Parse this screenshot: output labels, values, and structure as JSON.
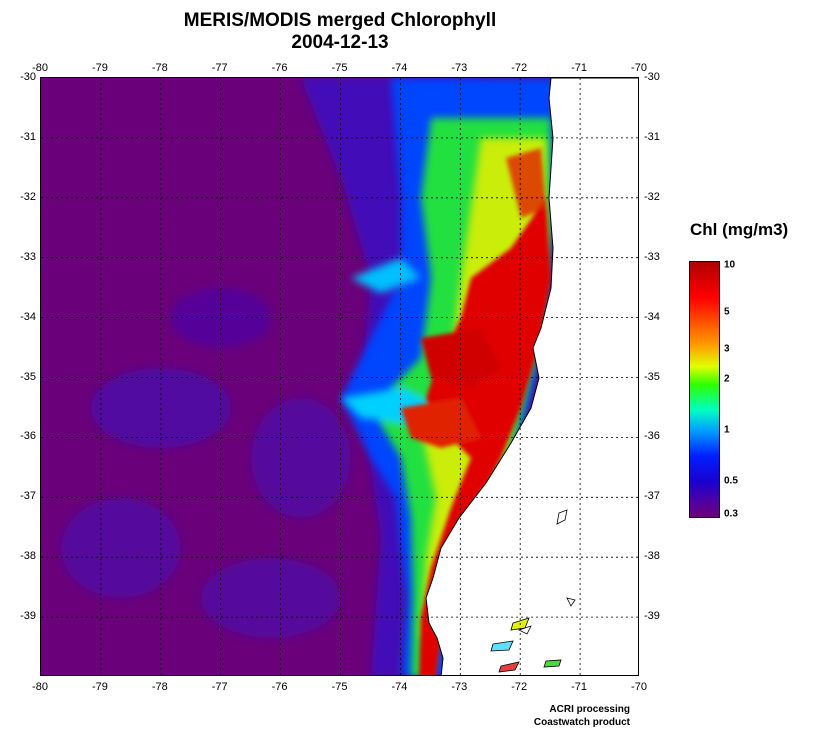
{
  "map": {
    "title": "MERIS/MODIS merged Chlorophyll",
    "date": "2004-12-13",
    "lon_ticks": [
      "-80",
      "-79",
      "-78",
      "-77",
      "-76",
      "-75",
      "-74",
      "-73",
      "-72",
      "-71",
      "-70"
    ],
    "lat_ticks": [
      "-30",
      "-31",
      "-32",
      "-33",
      "-34",
      "-35",
      "-36",
      "-37",
      "-38",
      "-39"
    ],
    "lon_range": [
      -80,
      -70
    ],
    "lat_range": [
      -40,
      -30
    ],
    "grid": true,
    "colors": {
      "ocean_low": "#6a007a",
      "land": "#ffffff",
      "coast": "#000000"
    }
  },
  "legend": {
    "title": "Chl (mg/m3)",
    "labels": [
      "10",
      "5",
      "3",
      "2",
      "1",
      "0.5",
      "0.3"
    ],
    "scale": "log",
    "range": [
      0.3,
      10
    ]
  },
  "credits": {
    "line1": "ACRI processing",
    "line2": "Coastwatch product"
  }
}
